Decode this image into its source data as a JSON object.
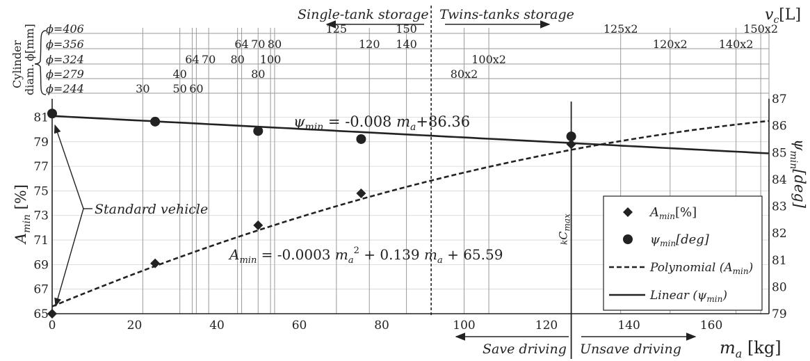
{
  "chart_data": {
    "type": "scatter",
    "xlabel": "m",
    "xlabel_sub": "a",
    "xlabel_unit": " [kg]",
    "x_range": [
      0,
      174
    ],
    "x_ticks": [
      0,
      20,
      40,
      60,
      80,
      100,
      120,
      140,
      160
    ],
    "left_axis": {
      "label_main": "A",
      "label_sub": "min",
      "label_unit": " [%]",
      "range": [
        65,
        82.5
      ],
      "ticks": [
        65,
        67,
        69,
        71,
        73,
        75,
        77,
        79,
        81
      ]
    },
    "right_axis": {
      "label_main": "ψ",
      "label_sub": "min",
      "label_unit": "[deg]",
      "range": [
        79,
        87
      ],
      "ticks": [
        79,
        80,
        81,
        82,
        83,
        84,
        85,
        86,
        87
      ]
    },
    "series": [
      {
        "name_main": "A",
        "name_sub": "min",
        "name_unit": "[%]",
        "marker": "diamond",
        "axis": "left",
        "points": [
          [
            0,
            65.0
          ],
          [
            25,
            69.1
          ],
          [
            50,
            72.2
          ],
          [
            75,
            74.8
          ],
          [
            126,
            78.8
          ]
        ]
      },
      {
        "name_main": "ψ",
        "name_sub": "min",
        "name_unit": "[deg]",
        "marker": "circle",
        "axis": "right",
        "points": [
          [
            0,
            86.45
          ],
          [
            25,
            86.15
          ],
          [
            50,
            85.8
          ],
          [
            75,
            85.5
          ],
          [
            126,
            85.6
          ]
        ]
      }
    ],
    "trendlines": [
      {
        "name": "Polynomial (A",
        "name_sub": "min",
        "name_tail": ")",
        "style": "dashed",
        "axis": "left",
        "coefficients": [
          65.59,
          0.139,
          -0.0003
        ]
      },
      {
        "name": "Linear (ψ",
        "name_sub": "min",
        "name_tail": ")",
        "style": "solid",
        "axis": "right",
        "coefficients": [
          86.36,
          -0.008
        ]
      }
    ],
    "equations": {
      "linear": {
        "a": "ψ",
        "a_sub": "min",
        "b": " = -0.008 ",
        "c": "m",
        "c_sub": "a",
        "d": "+86.36"
      },
      "poly": {
        "a": "A",
        "a_sub": "min",
        "b": " = -0.0003 ",
        "c": "m",
        "c_sub": "a",
        "c_sup": "2",
        "d": " + 0.139 ",
        "e": "m",
        "e_sub": "a",
        "f": " + 65.59"
      }
    },
    "annotations": {
      "standard_vehicle": "Standard vehicle",
      "kcmax_pre": "k",
      "kcmax_main": "C",
      "kcmax_sub": "max",
      "kcmax_x": 126,
      "single_tank": "Single-tank storage",
      "twins_tank": "Twins-tanks storage",
      "storage_boundary_x": 92,
      "save_driving": "Save driving",
      "unsave_driving": "Unsave driving",
      "vc_main": "v",
      "vc_sub": "c",
      "vc_unit": "[L]",
      "cyl_label_1": "Cylinder",
      "cyl_label_2": "diam.",
      "cyl_label_3": "ϕ[mm]"
    },
    "cylinder_rows": [
      {
        "label": "ϕ=406",
        "volumes": [
          {
            "text": "125",
            "x": 69
          },
          {
            "text": "150",
            "x": 86
          },
          {
            "text": "125x2",
            "x": 138
          },
          {
            "text": "150x2",
            "x": 172
          }
        ]
      },
      {
        "label": "ϕ=356",
        "volumes": [
          {
            "text": "64",
            "x": 46
          },
          {
            "text": "70",
            "x": 50
          },
          {
            "text": "80",
            "x": 54
          },
          {
            "text": "120",
            "x": 77
          },
          {
            "text": "140",
            "x": 86
          },
          {
            "text": "120x2",
            "x": 150
          },
          {
            "text": "140x2",
            "x": 166
          }
        ]
      },
      {
        "label": "ϕ=324",
        "volumes": [
          {
            "text": "64",
            "x": 34
          },
          {
            "text": "70",
            "x": 38
          },
          {
            "text": "80",
            "x": 45
          },
          {
            "text": "100",
            "x": 53
          },
          {
            "text": "100x2",
            "x": 106
          }
        ]
      },
      {
        "label": "ϕ=279",
        "volumes": [
          {
            "text": "40",
            "x": 31
          },
          {
            "text": "80",
            "x": 50
          },
          {
            "text": "80x2",
            "x": 100
          }
        ]
      },
      {
        "label": "ϕ=244",
        "volumes": [
          {
            "text": "30",
            "x": 22
          },
          {
            "text": "50",
            "x": 31
          },
          {
            "text": "60",
            "x": 35
          }
        ]
      }
    ],
    "grid_x": [
      22,
      31,
      34,
      35,
      38,
      45,
      46,
      50,
      53,
      54,
      69,
      77,
      86,
      100,
      106,
      138,
      150,
      166,
      172
    ],
    "legend_position": "bottom-right",
    "grid": true
  }
}
